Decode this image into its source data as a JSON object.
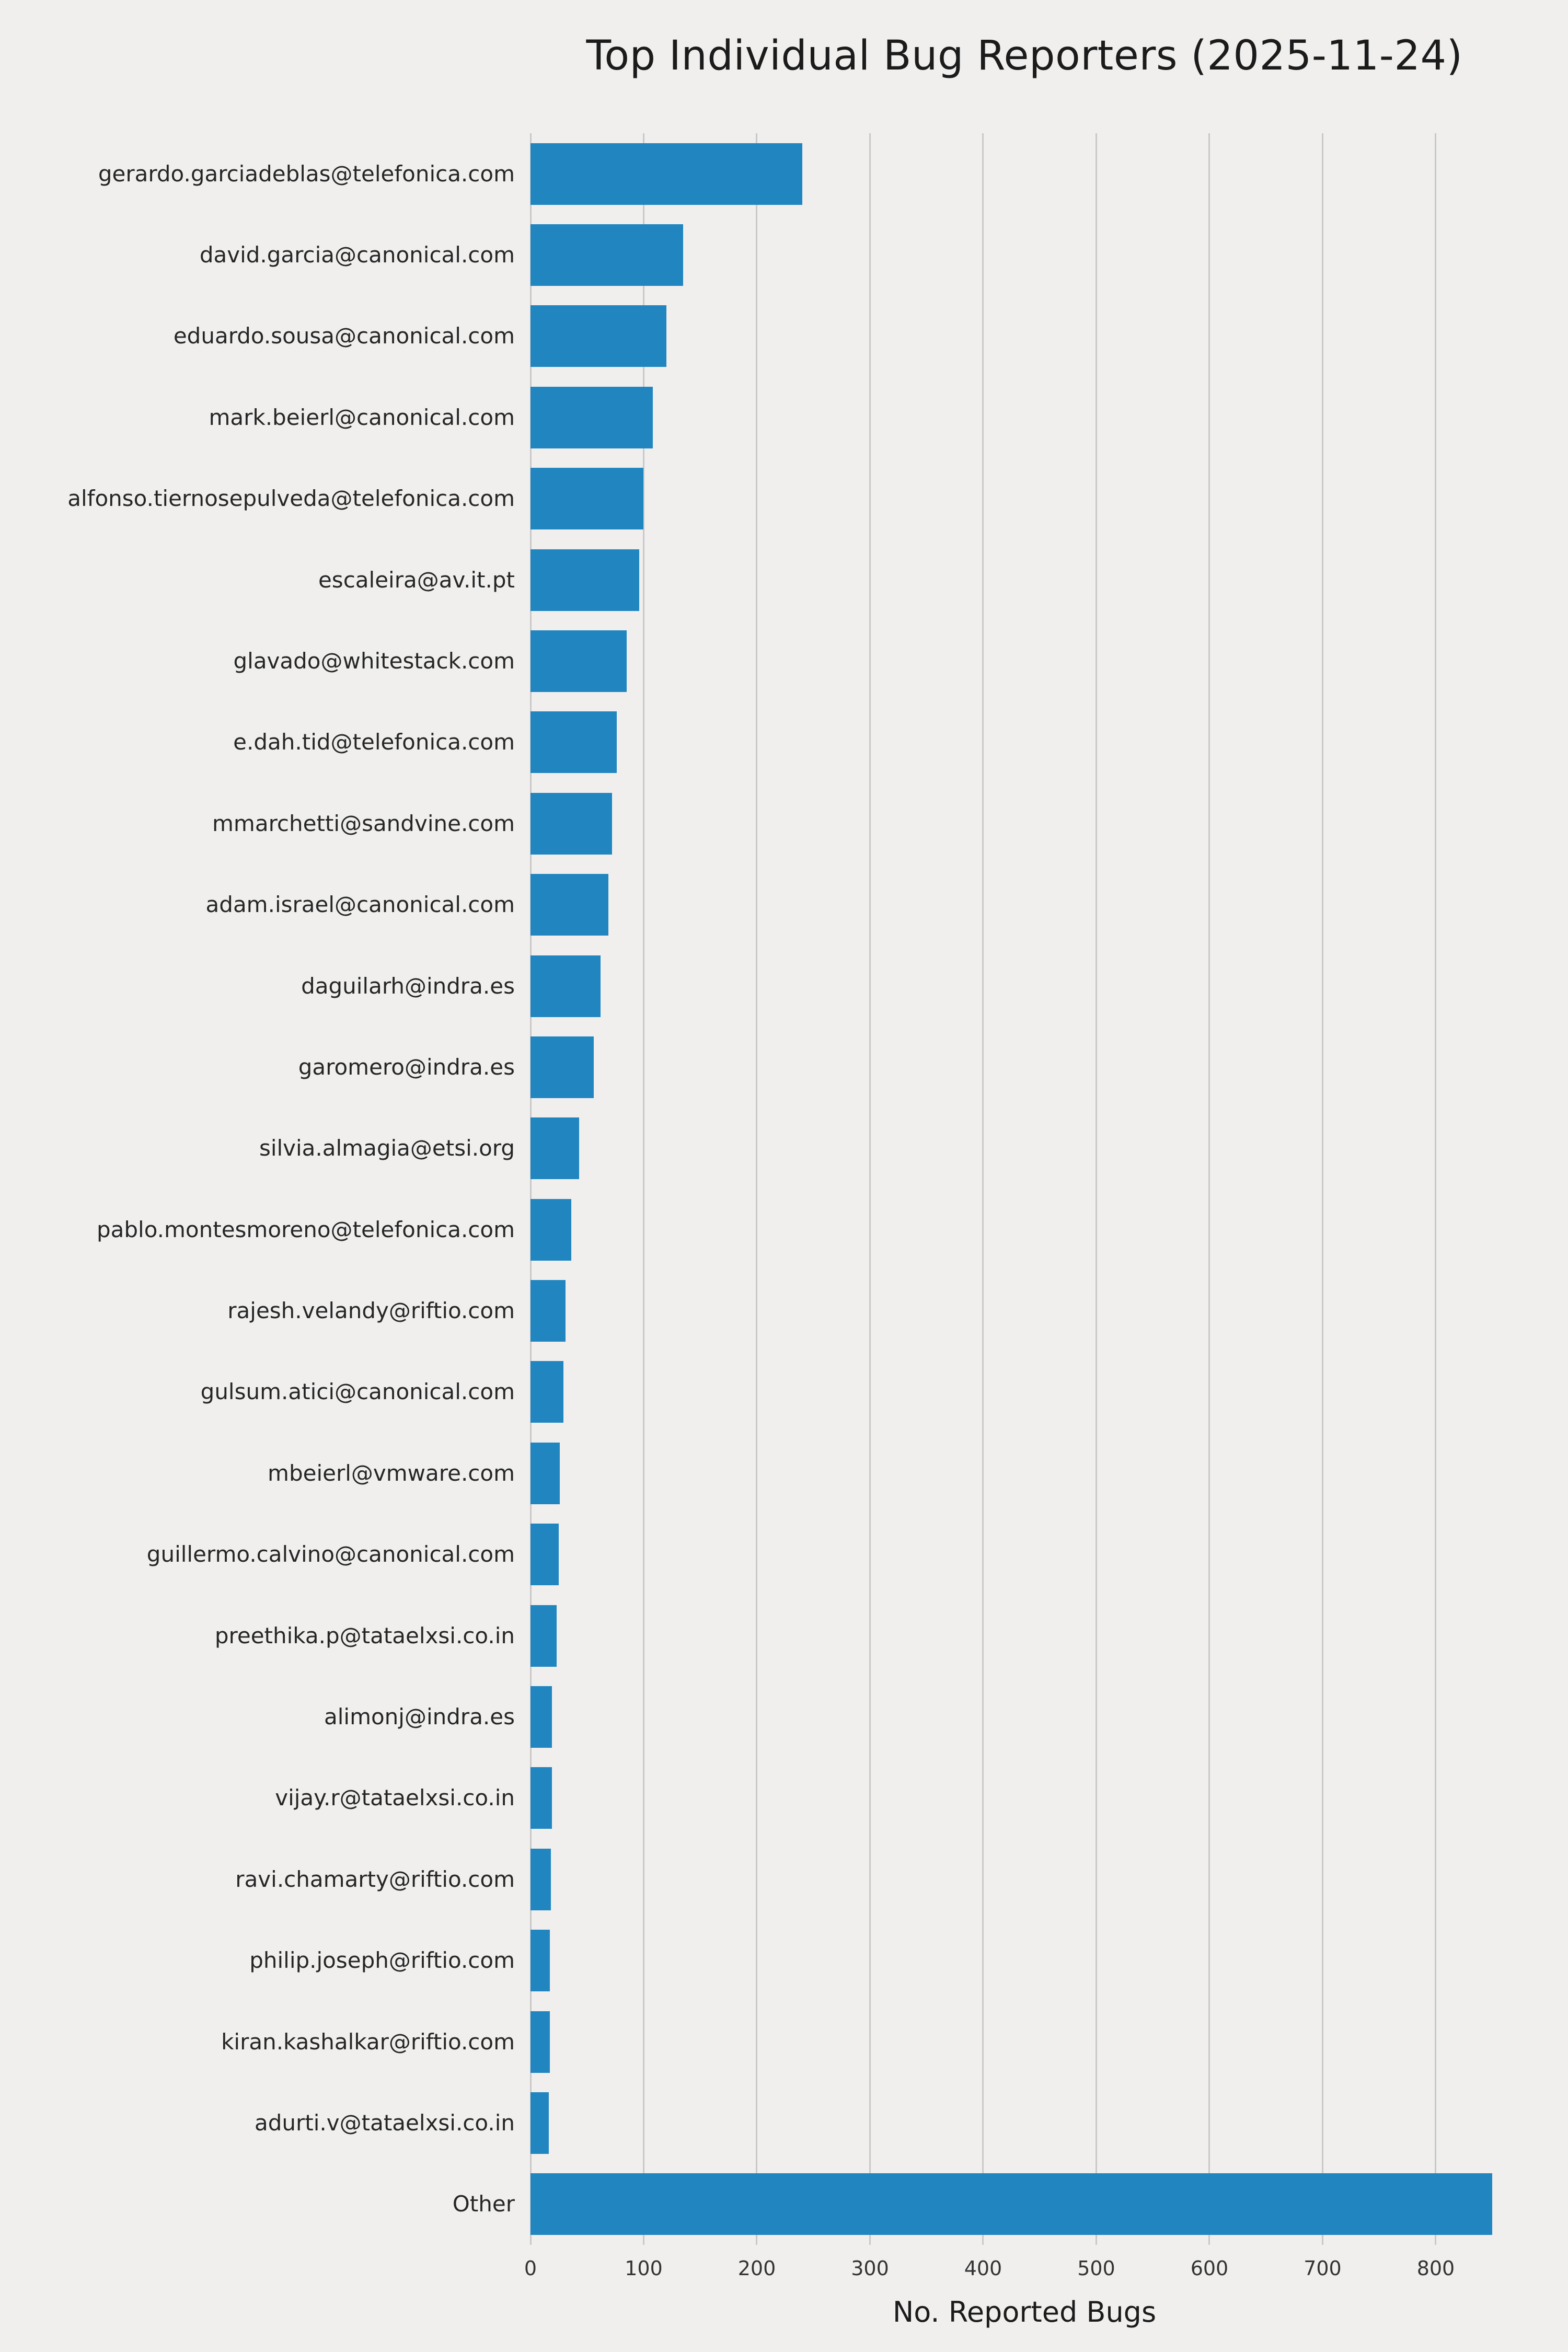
{
  "chart_data": {
    "type": "bar",
    "orientation": "horizontal",
    "title": "Top Individual Bug Reporters (2025-11-24)",
    "xlabel": "No. Reported Bugs",
    "ylabel": "",
    "grid": true,
    "legend": "none",
    "xlim": [
      0,
      873
    ],
    "xticks": [
      0,
      100,
      200,
      300,
      400,
      500,
      600,
      700,
      800
    ],
    "categories": [
      "gerardo.garciadeblas@telefonica.com",
      "david.garcia@canonical.com",
      "eduardo.sousa@canonical.com",
      "mark.beierl@canonical.com",
      "alfonso.tiernosepulveda@telefonica.com",
      "escaleira@av.it.pt",
      "glavado@whitestack.com",
      "e.dah.tid@telefonica.com",
      "mmarchetti@sandvine.com",
      "adam.israel@canonical.com",
      "daguilarh@indra.es",
      "garomero@indra.es",
      "silvia.almagia@etsi.org",
      "pablo.montesmoreno@telefonica.com",
      "rajesh.velandy@riftio.com",
      "gulsum.atici@canonical.com",
      "mbeierl@vmware.com",
      "guillermo.calvino@canonical.com",
      "preethika.p@tataelxsi.co.in",
      "alimonj@indra.es",
      "vijay.r@tataelxsi.co.in",
      "ravi.chamarty@riftio.com",
      "philip.joseph@riftio.com",
      "kiran.kashalkar@riftio.com",
      "adurti.v@tataelxsi.co.in",
      "Other"
    ],
    "values": [
      240,
      135,
      120,
      108,
      100,
      96,
      85,
      76,
      72,
      69,
      62,
      56,
      43,
      36,
      31,
      29,
      26,
      25,
      23,
      19,
      19,
      18,
      17,
      17,
      16,
      850
    ],
    "colors": {
      "bar": "#2186c0",
      "background": "#f0efee",
      "grid": "#c9c9c9",
      "title_text": "#1b1b1b",
      "tick_text": "#333333",
      "label_text": "#262626"
    }
  }
}
